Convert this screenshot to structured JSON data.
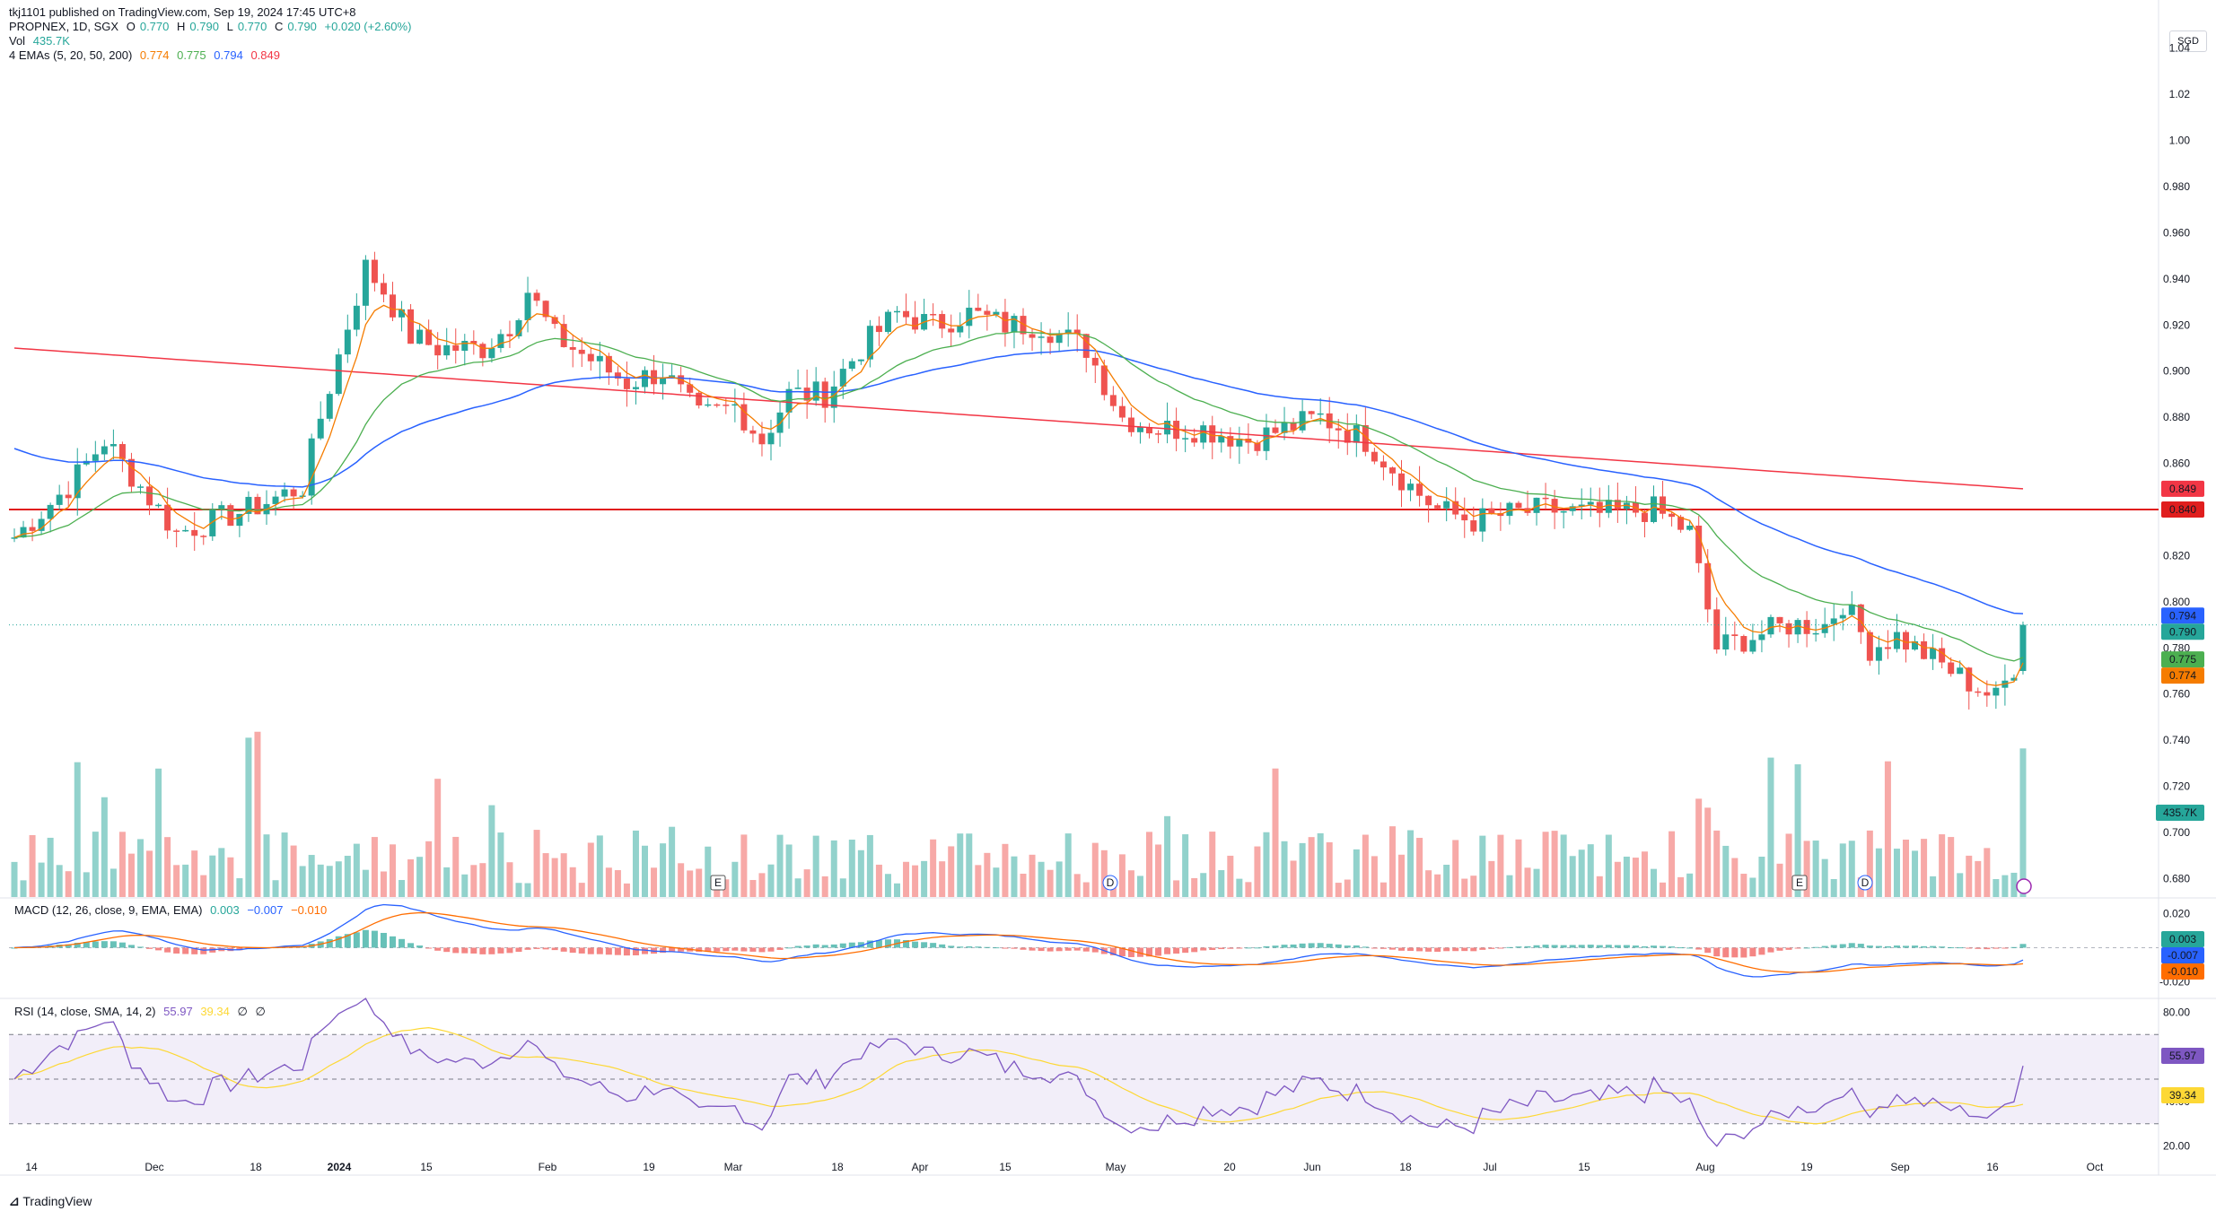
{
  "header": {
    "published": "tkj1101 published on TradingView.com, Sep 19, 2024 17:45 UTC+8"
  },
  "currency": "SGD",
  "footer": {
    "brand": "TradingView"
  },
  "legends": {
    "symbol": "PROPNEX, 1D, SGX",
    "ohlc": {
      "o_label": "O",
      "o": "0.770",
      "h_label": "H",
      "h": "0.790",
      "l_label": "L",
      "l": "0.770",
      "c_label": "C",
      "c": "0.790",
      "chg": "+0.020 (+2.60%)"
    },
    "vol_label": "Vol",
    "vol_value": "435.7K",
    "ema_label": "4 EMAs (5, 20, 50, 200)",
    "ema_values": [
      "0.774",
      "0.775",
      "0.794",
      "0.849"
    ],
    "macd_label": "MACD (12, 26, close, 9, EMA, EMA)",
    "macd_values": [
      "0.003",
      "−0.007",
      "−0.010"
    ],
    "rsi_label": "RSI (14, close, SMA, 14, 2)",
    "rsi_values": [
      "55.97",
      "39.34",
      "∅",
      "∅"
    ]
  },
  "colors": {
    "up": "#26a69a",
    "down": "#ef5350",
    "ema5": "#f57c00",
    "ema20": "#4caf50",
    "ema50": "#2962ff",
    "ema200": "#f23645",
    "macd": "#2962ff",
    "signal": "#ff6d00",
    "rsi": "#7e57c2",
    "rsi_ma": "#fdd835",
    "hline": "#e01e1e"
  },
  "chart_data": {
    "type": "candlestick",
    "symbol": "PROPNEX",
    "interval": "1D",
    "price_axis": {
      "ticks": [
        "1.04",
        "1.02",
        "1.00",
        "0.980",
        "0.960",
        "0.940",
        "0.920",
        "0.900",
        "0.880",
        "0.860",
        "0.840",
        "0.820",
        "0.800",
        "0.780",
        "0.760",
        "0.740",
        "0.720",
        "0.700",
        "0.680"
      ],
      "range": [
        0.672,
        1.05
      ]
    },
    "time_axis_labels": [
      "14",
      "Dec",
      "18",
      "2024",
      "15",
      "Feb",
      "19",
      "Mar",
      "18",
      "Apr",
      "15",
      "May",
      "20",
      "Jun",
      "18",
      "Jul",
      "15",
      "Aug",
      "19",
      "Sep",
      "16",
      "Oct"
    ],
    "horizontal_line": 0.84,
    "last_values": {
      "close": "0.790",
      "ema5": "0.774",
      "ema20": "0.775",
      "ema50": "0.794",
      "ema200": "0.849",
      "hline": "0.840",
      "volume": "435.7K"
    },
    "macd_axis": {
      "ticks": [
        "0.020",
        "0.000",
        "-0.020"
      ]
    },
    "macd_last": {
      "hist": "0.003",
      "macd": "-0.007",
      "signal": "-0.010"
    },
    "rsi_axis": {
      "ticks": [
        "80.00",
        "60.00",
        "40.00",
        "20.00"
      ],
      "bands": [
        30,
        70
      ]
    },
    "rsi_last": {
      "rsi": "55.97",
      "ma": "39.34"
    },
    "anchors": [
      {
        "i": 0,
        "p": 0.828
      },
      {
        "i": 6,
        "p": 0.85
      },
      {
        "i": 10,
        "p": 0.87
      },
      {
        "i": 14,
        "p": 0.85
      },
      {
        "i": 18,
        "p": 0.83
      },
      {
        "i": 26,
        "p": 0.84
      },
      {
        "i": 32,
        "p": 0.85
      },
      {
        "i": 34,
        "p": 0.88
      },
      {
        "i": 37,
        "p": 0.92
      },
      {
        "i": 39,
        "p": 0.945
      },
      {
        "i": 41,
        "p": 0.935
      },
      {
        "i": 44,
        "p": 0.915
      },
      {
        "i": 47,
        "p": 0.91
      },
      {
        "i": 52,
        "p": 0.91
      },
      {
        "i": 55,
        "p": 0.92
      },
      {
        "i": 57,
        "p": 0.935
      },
      {
        "i": 60,
        "p": 0.915
      },
      {
        "i": 64,
        "p": 0.905
      },
      {
        "i": 68,
        "p": 0.895
      },
      {
        "i": 72,
        "p": 0.9
      },
      {
        "i": 76,
        "p": 0.88
      },
      {
        "i": 80,
        "p": 0.885
      },
      {
        "i": 83,
        "p": 0.87
      },
      {
        "i": 86,
        "p": 0.89
      },
      {
        "i": 90,
        "p": 0.89
      },
      {
        "i": 94,
        "p": 0.91
      },
      {
        "i": 98,
        "p": 0.925
      },
      {
        "i": 102,
        "p": 0.92
      },
      {
        "i": 106,
        "p": 0.925
      },
      {
        "i": 110,
        "p": 0.92
      },
      {
        "i": 114,
        "p": 0.92
      },
      {
        "i": 119,
        "p": 0.91
      },
      {
        "i": 123,
        "p": 0.88
      },
      {
        "i": 127,
        "p": 0.875
      },
      {
        "i": 132,
        "p": 0.875
      },
      {
        "i": 137,
        "p": 0.87
      },
      {
        "i": 141,
        "p": 0.875
      },
      {
        "i": 145,
        "p": 0.88
      },
      {
        "i": 150,
        "p": 0.87
      },
      {
        "i": 155,
        "p": 0.85
      },
      {
        "i": 158,
        "p": 0.84
      },
      {
        "i": 162,
        "p": 0.835
      },
      {
        "i": 166,
        "p": 0.838
      },
      {
        "i": 170,
        "p": 0.84
      },
      {
        "i": 176,
        "p": 0.838
      },
      {
        "i": 182,
        "p": 0.84
      },
      {
        "i": 186,
        "p": 0.83
      },
      {
        "i": 189,
        "p": 0.78
      },
      {
        "i": 193,
        "p": 0.785
      },
      {
        "i": 197,
        "p": 0.79
      },
      {
        "i": 201,
        "p": 0.79
      },
      {
        "i": 203,
        "p": 0.8
      },
      {
        "i": 206,
        "p": 0.78
      },
      {
        "i": 209,
        "p": 0.785
      },
      {
        "i": 213,
        "p": 0.775
      },
      {
        "i": 217,
        "p": 0.765
      },
      {
        "i": 220,
        "p": 0.758
      },
      {
        "i": 222,
        "p": 0.772
      },
      {
        "i": 223,
        "p": 0.79
      }
    ],
    "n_bars": 224
  }
}
